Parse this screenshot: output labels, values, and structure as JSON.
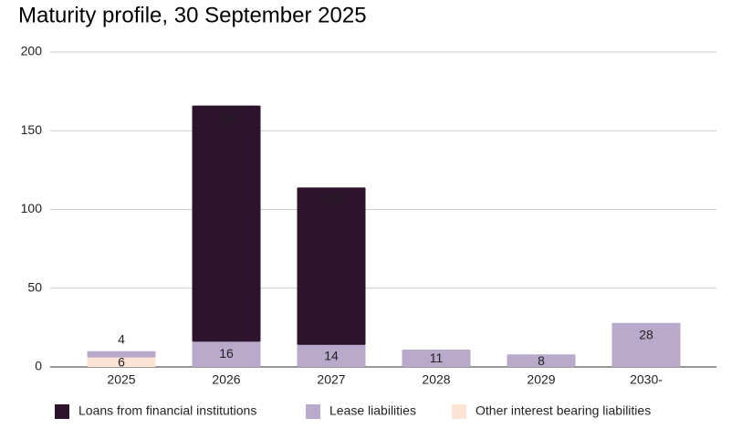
{
  "chart_data": {
    "type": "stacked-bar",
    "title": "Maturity profile, 30 September 2025",
    "categories": [
      "2025",
      "2026",
      "2027",
      "2028",
      "2029",
      "2030-"
    ],
    "series": [
      {
        "name": "Loans from financial institutions",
        "color": "#2d132c",
        "label_color": "#ffffff",
        "values": [
          null,
          150,
          100,
          null,
          null,
          null
        ]
      },
      {
        "name": "Lease liabilities",
        "color": "#b9aacb",
        "label_color": "#000000",
        "values": [
          4,
          16,
          14,
          11,
          8,
          28
        ]
      },
      {
        "name": "Other interest bearing liabilities",
        "color": "#fde3d4",
        "label_color": "#000000",
        "values": [
          6,
          null,
          null,
          null,
          null,
          null
        ]
      }
    ],
    "ylim": [
      0,
      200
    ],
    "yticks": [
      0,
      50,
      100,
      150,
      200
    ],
    "grid": true
  }
}
